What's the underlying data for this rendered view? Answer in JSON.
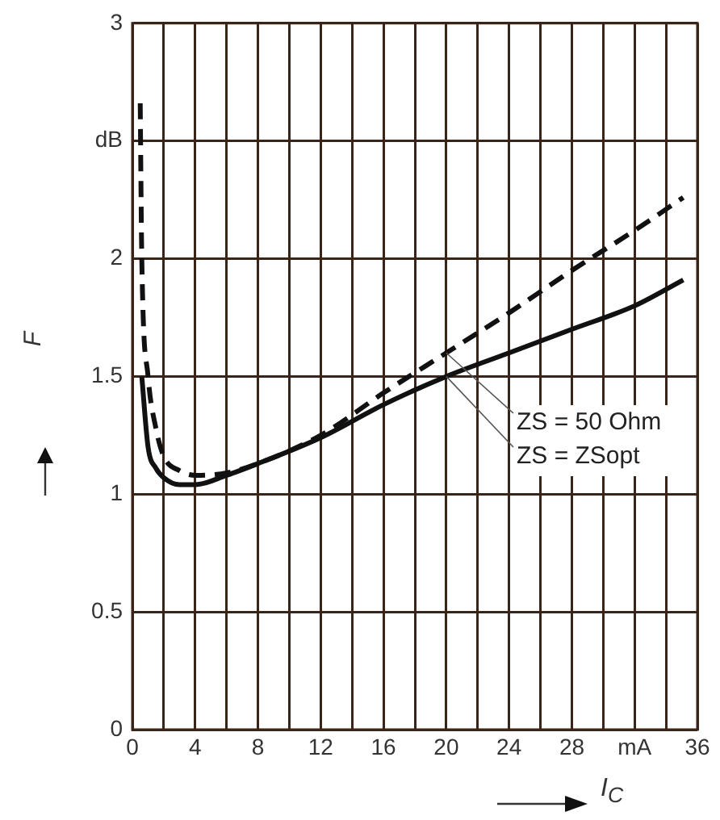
{
  "chart_data": {
    "type": "line",
    "xlabel": "I$_{C}$",
    "ylabel": "F",
    "xlim": [
      0,
      36
    ],
    "ylim": [
      0,
      3
    ],
    "xticks": [
      0,
      {
        "value": 2,
        "label": null
      },
      4,
      {
        "value": 6,
        "label": null
      },
      8,
      {
        "value": 10,
        "label": null
      },
      12,
      {
        "value": 14,
        "label": null
      },
      16,
      {
        "value": 18,
        "label": null
      },
      20,
      {
        "value": 22,
        "label": null
      },
      24,
      {
        "value": 26,
        "label": null
      },
      28,
      {
        "value": 30,
        "label": null
      },
      {
        "value": 32,
        "label": "mA"
      },
      {
        "value": 34,
        "label": null
      },
      36
    ],
    "yticks": [
      0,
      0.5,
      1,
      1.5,
      2,
      {
        "value": 2.5,
        "label": "dB"
      },
      3
    ],
    "grid": true,
    "legend": false,
    "marker": "none",
    "series": [
      {
        "color": "#111111",
        "line_style": "dashed",
        "x": [
          0.5,
          0.6,
          1.0,
          1.5,
          2,
          3,
          4,
          6,
          8,
          12,
          16,
          20,
          24,
          28,
          32,
          35.1
        ],
        "values": [
          2.66,
          2.0,
          1.5,
          1.28,
          1.16,
          1.1,
          1.08,
          1.09,
          1.13,
          1.25,
          1.43,
          1.6,
          1.77,
          1.95,
          2.12,
          2.26
        ]
      },
      {
        "color": "#111111",
        "line_style": "solid",
        "x": [
          0.6,
          1,
          1.5,
          2,
          3,
          4,
          6,
          8,
          12,
          16,
          20,
          24,
          28,
          32,
          35.1
        ],
        "values": [
          1.5,
          1.2,
          1.11,
          1.07,
          1.04,
          1.04,
          1.08,
          1.13,
          1.24,
          1.38,
          1.5,
          1.6,
          1.7,
          1.8,
          1.91
        ]
      }
    ],
    "annotations": [
      {
        "text": "ZS = 50 Ohm",
        "x": 20,
        "y": 1.6
      },
      {
        "text": "ZS = ZSopt",
        "x": 20,
        "y": 1.5
      }
    ]
  }
}
